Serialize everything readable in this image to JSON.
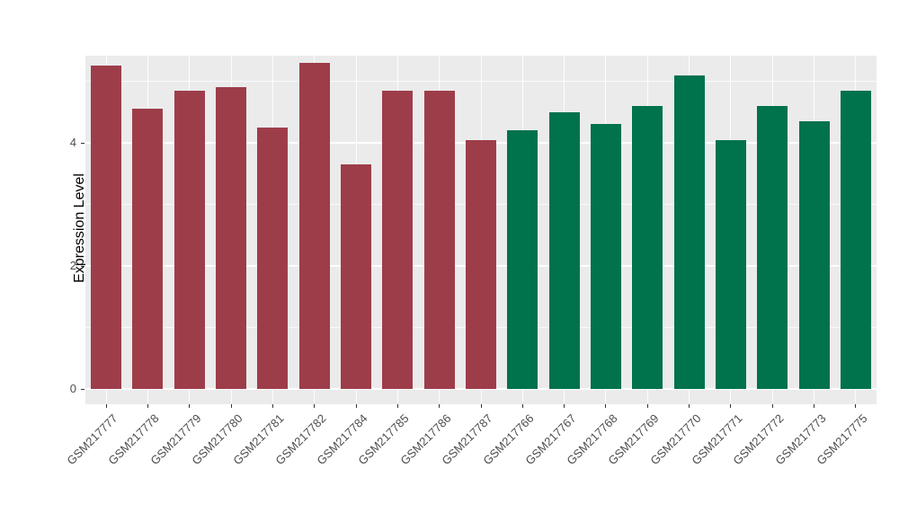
{
  "chart_data": {
    "type": "bar",
    "title": "",
    "xlabel": "",
    "ylabel": "Expression Level",
    "ylim": [
      0,
      5.6
    ],
    "yticks": [
      0,
      2,
      4
    ],
    "minor_gridlines": [
      1,
      3,
      5
    ],
    "legend": "none",
    "panel_bg": "#ebebeb",
    "grid_color": "#ffffff",
    "axis_text_color": "#4d4d4d",
    "categories": [
      "GSM217777",
      "GSM217778",
      "GSM217779",
      "GSM217780",
      "GSM217781",
      "GSM217782",
      "GSM217784",
      "GSM217785",
      "GSM217786",
      "GSM217787",
      "GSM217766",
      "GSM217767",
      "GSM217768",
      "GSM217769",
      "GSM217770",
      "GSM217771",
      "GSM217772",
      "GSM217773",
      "GSM217775"
    ],
    "values": [
      5.25,
      4.55,
      4.85,
      4.9,
      4.25,
      5.3,
      3.65,
      4.85,
      4.85,
      4.05,
      4.2,
      4.5,
      4.3,
      4.6,
      5.1,
      4.05,
      4.6,
      4.35,
      4.85
    ],
    "groups": [
      "maroon",
      "maroon",
      "maroon",
      "maroon",
      "maroon",
      "maroon",
      "maroon",
      "maroon",
      "maroon",
      "maroon",
      "green",
      "green",
      "green",
      "green",
      "green",
      "green",
      "green",
      "green",
      "green"
    ],
    "group_colors": {
      "maroon": "#9e3d4a",
      "green": "#00724c"
    }
  }
}
